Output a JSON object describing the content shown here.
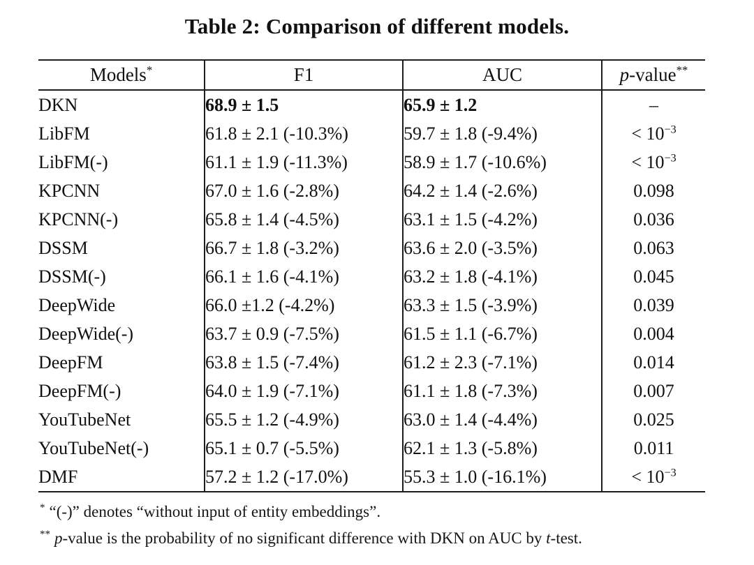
{
  "title": "Table 2: Comparison of different models.",
  "colors": {
    "background": "#ffffff",
    "text": "#111111",
    "rule": "#1c1c1c"
  },
  "table": {
    "columns": [
      {
        "italic": "",
        "label": "Models",
        "sup": "*"
      },
      {
        "italic": "",
        "label": "F1",
        "sup": ""
      },
      {
        "italic": "",
        "label": "AUC",
        "sup": ""
      },
      {
        "italic": "p",
        "label": "-value",
        "sup": "**"
      }
    ],
    "rows": [
      {
        "model": "DKN",
        "f1": "68.9 ± 1.5",
        "auc": "65.9 ± 1.2",
        "p_base": "–",
        "p_exp": "",
        "bold": true
      },
      {
        "model": "LibFM",
        "f1": "61.8 ± 2.1 (-10.3%)",
        "auc": "59.7 ± 1.8 (-9.4%)",
        "p_base": "< 10",
        "p_exp": "−3",
        "bold": false
      },
      {
        "model": "LibFM(-)",
        "f1": "61.1 ± 1.9 (-11.3%)",
        "auc": "58.9 ± 1.7 (-10.6%)",
        "p_base": "< 10",
        "p_exp": "−3",
        "bold": false
      },
      {
        "model": "KPCNN",
        "f1": "67.0 ± 1.6 (-2.8%)",
        "auc": "64.2 ± 1.4 (-2.6%)",
        "p_base": "0.098",
        "p_exp": "",
        "bold": false
      },
      {
        "model": "KPCNN(-)",
        "f1": "65.8 ± 1.4 (-4.5%)",
        "auc": "63.1 ± 1.5 (-4.2%)",
        "p_base": "0.036",
        "p_exp": "",
        "bold": false
      },
      {
        "model": "DSSM",
        "f1": "66.7 ± 1.8 (-3.2%)",
        "auc": "63.6 ± 2.0 (-3.5%)",
        "p_base": "0.063",
        "p_exp": "",
        "bold": false
      },
      {
        "model": "DSSM(-)",
        "f1": "66.1 ± 1.6 (-4.1%)",
        "auc": "63.2 ± 1.8 (-4.1%)",
        "p_base": "0.045",
        "p_exp": "",
        "bold": false
      },
      {
        "model": "DeepWide",
        "f1": "66.0 ±1.2 (-4.2%)",
        "auc": "63.3 ± 1.5 (-3.9%)",
        "p_base": "0.039",
        "p_exp": "",
        "bold": false
      },
      {
        "model": "DeepWide(-)",
        "f1": "63.7 ± 0.9 (-7.5%)",
        "auc": "61.5 ± 1.1 (-6.7%)",
        "p_base": "0.004",
        "p_exp": "",
        "bold": false
      },
      {
        "model": "DeepFM",
        "f1": "63.8 ± 1.5 (-7.4%)",
        "auc": "61.2 ± 2.3 (-7.1%)",
        "p_base": "0.014",
        "p_exp": "",
        "bold": false
      },
      {
        "model": "DeepFM(-)",
        "f1": "64.0 ± 1.9 (-7.1%)",
        "auc": "61.1 ± 1.8 (-7.3%)",
        "p_base": "0.007",
        "p_exp": "",
        "bold": false
      },
      {
        "model": "YouTubeNet",
        "f1": "65.5 ± 1.2 (-4.9%)",
        "auc": "63.0 ± 1.4 (-4.4%)",
        "p_base": "0.025",
        "p_exp": "",
        "bold": false
      },
      {
        "model": "YouTubeNet(-)",
        "f1": "65.1 ± 0.7 (-5.5%)",
        "auc": "62.1 ± 1.3 (-5.8%)",
        "p_base": "0.011",
        "p_exp": "",
        "bold": false
      },
      {
        "model": "DMF",
        "f1": "57.2 ± 1.2 (-17.0%)",
        "auc": "55.3 ± 1.0 (-16.1%)",
        "p_base": "< 10",
        "p_exp": "−3",
        "bold": false
      }
    ]
  },
  "footnotes": [
    {
      "marker": "*",
      "segments": [
        {
          "t": "“(-)” denotes “without input of entity embeddings”."
        }
      ]
    },
    {
      "marker": "**",
      "segments": [
        {
          "t": "p",
          "i": true
        },
        {
          "t": "-value is the probability of no significant difference with DKN on AUC by "
        },
        {
          "t": "t",
          "i": true
        },
        {
          "t": "-test."
        }
      ]
    }
  ]
}
